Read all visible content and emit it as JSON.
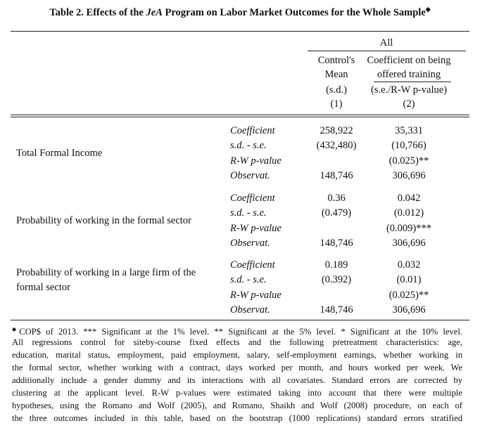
{
  "title": {
    "prefix": "Table 2. Effects of the ",
    "emphasis": "JeA",
    "suffix": " Program on Labor Market Outcomes for the Whole Sample",
    "marker": "◆"
  },
  "header": {
    "group": "All",
    "columns": [
      {
        "lines": [
          "Control's",
          "Mean",
          "(s.d.)",
          "(1)"
        ]
      },
      {
        "lines": [
          "Coefficient on being",
          "offered training",
          "(s.e./R-W p-value)",
          "(2)"
        ]
      }
    ]
  },
  "rows": [
    {
      "label_lines": [
        "Total Formal Income"
      ],
      "stats": [
        {
          "label": "Coefficient",
          "control": "258,922",
          "coefficient": "35,331"
        },
        {
          "label": "s.d. - s.e.",
          "control": "(432,480)",
          "coefficient": "(10,766)"
        },
        {
          "label": "R-W p-value",
          "coefficient": "(0.025)**"
        },
        {
          "label": "Observat.",
          "control": "148,746",
          "coefficient": "306,696"
        }
      ]
    },
    {
      "label_lines": [
        "Probability of working in the formal sector"
      ],
      "stats": [
        {
          "label": "Coefficient",
          "control": "0.36",
          "coefficient": "0.042"
        },
        {
          "label": "s.d. - s.e.",
          "control": "(0.479)",
          "coefficient": "(0.012)"
        },
        {
          "label": "R-W p-value",
          "coefficient": "(0.009)***"
        },
        {
          "label": "Observat.",
          "control": "148,746",
          "coefficient": "306,696"
        }
      ]
    },
    {
      "label_lines": [
        "Probability of working in a large firm of the",
        "formal sector"
      ],
      "stats": [
        {
          "label": "Coefficient",
          "control": "0.189",
          "coefficient": "0.032"
        },
        {
          "label": "s.d. - s.e.",
          "control": "(0.392)",
          "coefficient": "(0.01)"
        },
        {
          "label": "R-W p-value",
          "coefficient": "(0.025)**"
        },
        {
          "label": "Observat.",
          "control": "148,746",
          "coefficient": "306,696"
        }
      ]
    }
  ],
  "footnote": {
    "marker": "◆",
    "lines": [
      "COP$ of 2013. *** Significant at the 1% level. ** Significant at the 5% level. * Significant at the 10% level.",
      "All regressions control for siteby-course fixed effects and the following pretreatment characteristics: age,",
      "education, marital status, employment, paid employment, salary, self-employment earnings, whether working in",
      "the formal sector, whether working with a contract, days worked per month, and hours worked per week. We",
      "additionally include a gender dummy and its interactions with all covariates. Standard errors are corrected by",
      "clustering at the applicant level. R-W p-values were estimated taking into account that there were multiple",
      "hypotheses, using the Romano and Wolf (2005), and Romano, Shaikh and Wolf (2008) procedure, on each of",
      "the three outcomes included in this table, based on the bootstrap (1000 replications) standard errors stratified"
    ]
  }
}
